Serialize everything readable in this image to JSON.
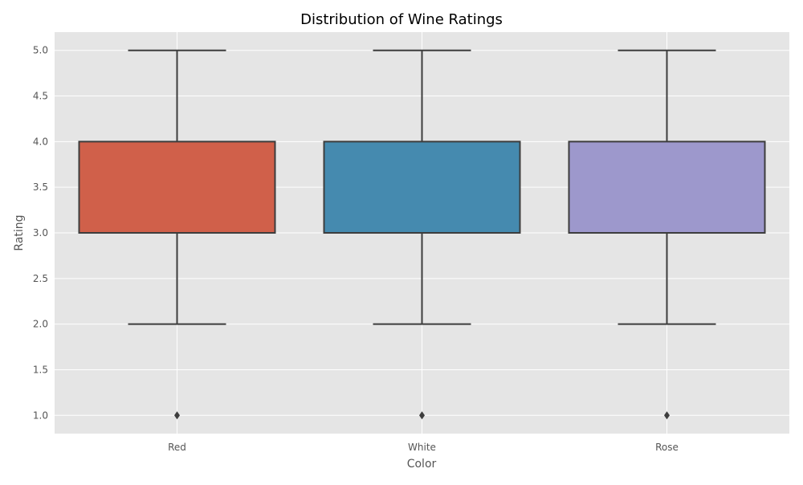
{
  "chart_data": {
    "type": "box",
    "title": "Distribution of Wine Ratings",
    "xlabel": "Color",
    "ylabel": "Rating",
    "ylim": [
      0.8,
      5.2
    ],
    "yticks": [
      1.0,
      1.5,
      2.0,
      2.5,
      3.0,
      3.5,
      4.0,
      4.5,
      5.0
    ],
    "ytick_labels": [
      "1.0",
      "1.5",
      "2.0",
      "2.5",
      "3.0",
      "3.5",
      "4.0",
      "4.5",
      "5.0"
    ],
    "grid": true,
    "categories": [
      "Red",
      "White",
      "Rose"
    ],
    "boxes": [
      {
        "category": "Red",
        "whisker_low": 2.0,
        "q1": 3.0,
        "q3": 4.0,
        "whisker_high": 5.0,
        "outliers": [
          1.0
        ],
        "color": "#d0604a"
      },
      {
        "category": "White",
        "whisker_low": 2.0,
        "q1": 3.0,
        "q3": 4.0,
        "whisker_high": 5.0,
        "outliers": [
          1.0
        ],
        "color": "#458aaf"
      },
      {
        "category": "Rose",
        "whisker_low": 2.0,
        "q1": 3.0,
        "q3": 4.0,
        "whisker_high": 5.0,
        "outliers": [
          1.0
        ],
        "color": "#9d98cc"
      }
    ],
    "background_color": "#e5e5e5",
    "grid_color": "#ffffff",
    "line_color": "#3d3d3d"
  }
}
